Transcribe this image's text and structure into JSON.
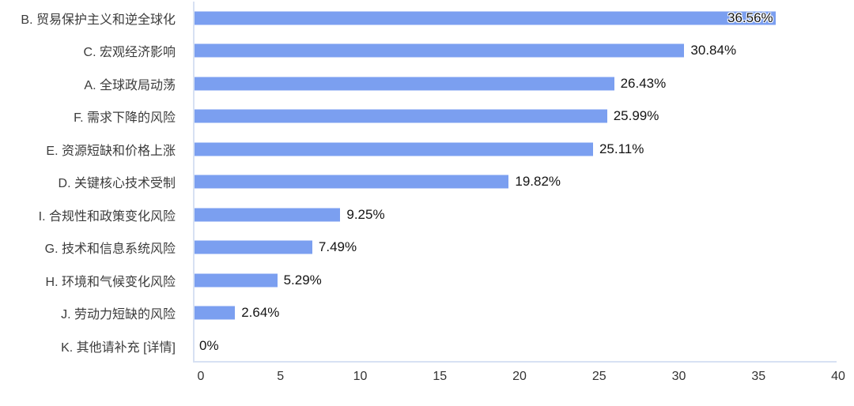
{
  "chart_data": {
    "type": "bar",
    "orientation": "horizontal",
    "title": "",
    "xlabel": "",
    "ylabel": "",
    "categories": [
      "B. 贸易保护主义和逆全球化",
      "C. 宏观经济影响",
      "A. 全球政局动荡",
      "F. 需求下降的风险",
      "E. 资源短缺和价格上涨",
      "D. 关键核心技术受制",
      "I. 合规性和政策变化风险",
      "G. 技术和信息系统风险",
      "H. 环境和气候变化风险",
      "J. 劳动力短缺的风险",
      "K. 其他请补充 [详情]"
    ],
    "values": [
      36.56,
      30.84,
      26.43,
      25.99,
      25.11,
      19.82,
      9.25,
      7.49,
      5.29,
      2.64,
      0
    ],
    "value_labels": [
      "36.56%",
      "30.84%",
      "26.43%",
      "25.99%",
      "25.11%",
      "19.82%",
      "9.25%",
      "7.49%",
      "5.29%",
      "2.64%",
      "0%"
    ],
    "xlim": [
      0,
      40
    ],
    "xticks": [
      0,
      5,
      10,
      15,
      20,
      25,
      30,
      35,
      40
    ],
    "grid": false,
    "legend": false,
    "colors": {
      "bar": "#7B9FF0",
      "axis_line": "#D7E1F3",
      "category_text": "#3C3C3C",
      "value_text": "#141414",
      "tick_text": "#333333"
    }
  }
}
